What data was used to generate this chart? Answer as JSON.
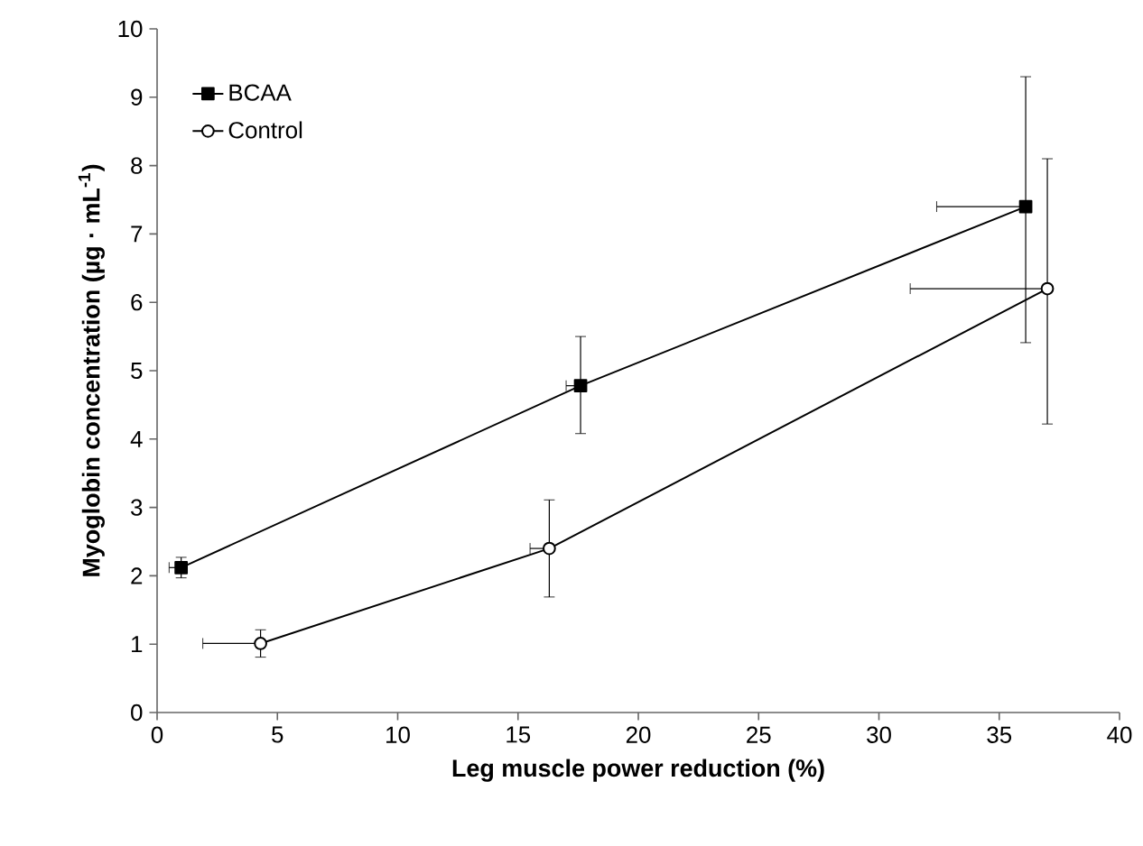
{
  "chart_data": {
    "type": "line",
    "xlabel": "Leg muscle power reduction (%)",
    "ylabel": "Myoglobin concentration  (µg · mL$^{-1}$)",
    "xlim": [
      0,
      40
    ],
    "xticks": [
      0,
      5,
      10,
      15,
      20,
      25,
      30,
      35,
      40
    ],
    "ylim": [
      0,
      10
    ],
    "yticks": [
      0,
      1,
      2,
      3,
      4,
      5,
      6,
      7,
      8,
      9,
      10
    ],
    "grid": false,
    "legend": "top left",
    "line_style": "solid",
    "series": [
      {
        "name": "BCAA",
        "color": "#000000",
        "marker": "square",
        "x": [
          1.0,
          17.6,
          36.1
        ],
        "values": [
          2.12,
          4.78,
          7.4
        ],
        "errors": [
          0.15,
          [
            4.08,
            5.5
          ],
          [
            5.41,
            9.3
          ]
        ],
        "xerrors": [
          [
            0.5,
            1.0
          ],
          [
            17.0,
            17.6
          ],
          [
            32.4,
            36.1
          ]
        ]
      },
      {
        "name": "Control",
        "color": "#000000",
        "marker": "circle",
        "x": [
          4.3,
          16.3,
          37.0
        ],
        "values": [
          1.01,
          2.4,
          6.2
        ],
        "errors": [
          0.2,
          [
            1.69,
            3.11
          ],
          [
            4.22,
            8.1
          ]
        ],
        "xerrors": [
          [
            1.9,
            4.3
          ],
          [
            15.5,
            16.3
          ],
          [
            31.3,
            37.0
          ]
        ]
      }
    ]
  }
}
